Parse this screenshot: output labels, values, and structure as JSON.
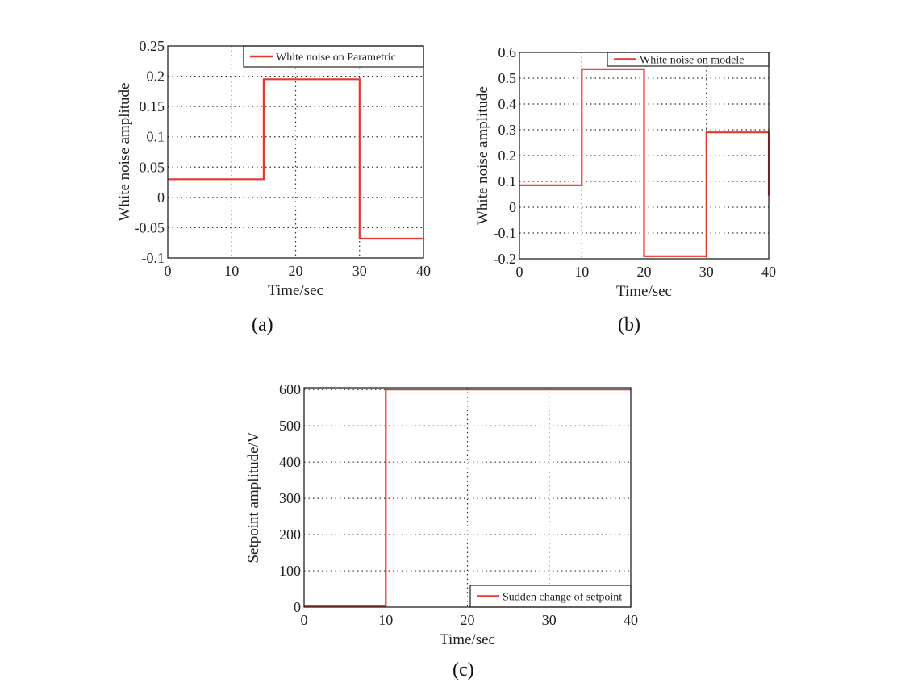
{
  "chart_data": [
    {
      "type": "line",
      "panel_label": "(a)",
      "xlabel": "Time/sec",
      "ylabel": "White noise amplitude",
      "xlim": [
        0,
        40
      ],
      "ylim": [
        -0.1,
        0.25
      ],
      "xticks": [
        0,
        10,
        20,
        30,
        40
      ],
      "xtick_labels": [
        "0",
        "10",
        "20",
        "30",
        "40"
      ],
      "yticks": [
        -0.1,
        -0.05,
        0,
        0.05,
        0.1,
        0.15,
        0.2,
        0.25
      ],
      "ytick_labels": [
        "-0.1",
        "-0.05",
        "0",
        "0.05",
        "0.1",
        "0.15",
        "0.2",
        "0.25"
      ],
      "grid": true,
      "legend_position": "top-right",
      "series": [
        {
          "name": "White noise on Parametric",
          "color": "#e8362d",
          "step": true,
          "x": [
            0,
            15,
            15,
            30,
            30,
            40
          ],
          "y": [
            0.03,
            0.03,
            0.195,
            0.195,
            -0.068,
            -0.068
          ]
        }
      ]
    },
    {
      "type": "line",
      "panel_label": "(b)",
      "xlabel": "Time/sec",
      "ylabel": "White noise amplitude",
      "xlim": [
        0,
        40
      ],
      "ylim": [
        -0.2,
        0.6
      ],
      "xticks": [
        0,
        10,
        20,
        30,
        40
      ],
      "xtick_labels": [
        "0",
        "10",
        "20",
        "30",
        "40"
      ],
      "yticks": [
        -0.2,
        -0.1,
        0,
        0.1,
        0.2,
        0.3,
        0.4,
        0.5,
        0.6
      ],
      "ytick_labels": [
        "-0.2",
        "-0.1",
        "0",
        "0.1",
        "0.2",
        "0.3",
        "0.4",
        "0.5",
        "0.6"
      ],
      "grid": true,
      "legend_position": "top-right",
      "series": [
        {
          "name": "White noise on modele",
          "color": "#e8362d",
          "step": true,
          "x": [
            0,
            10,
            10,
            20,
            20,
            30,
            30,
            40,
            40
          ],
          "y": [
            0.085,
            0.085,
            0.535,
            0.535,
            -0.19,
            -0.19,
            0.29,
            0.29,
            0.045
          ]
        }
      ]
    },
    {
      "type": "line",
      "panel_label": "(c)",
      "xlabel": "Time/sec",
      "ylabel": "Setpoint amplitude/V",
      "xlim": [
        0,
        40
      ],
      "ylim": [
        0,
        605
      ],
      "xticks": [
        0,
        10,
        20,
        30,
        40
      ],
      "xtick_labels": [
        "0",
        "10",
        "20",
        "30",
        "40"
      ],
      "yticks": [
        0,
        100,
        200,
        300,
        400,
        500,
        600
      ],
      "ytick_labels": [
        "0",
        "100",
        "200",
        "300",
        "400",
        "500",
        "600"
      ],
      "grid": true,
      "legend_position": "bottom-right",
      "series": [
        {
          "name": "Sudden change of setpoint",
          "color": "#e8362d",
          "step": true,
          "x": [
            0,
            10,
            10,
            40
          ],
          "y": [
            3,
            3,
            600,
            600
          ]
        }
      ]
    }
  ]
}
